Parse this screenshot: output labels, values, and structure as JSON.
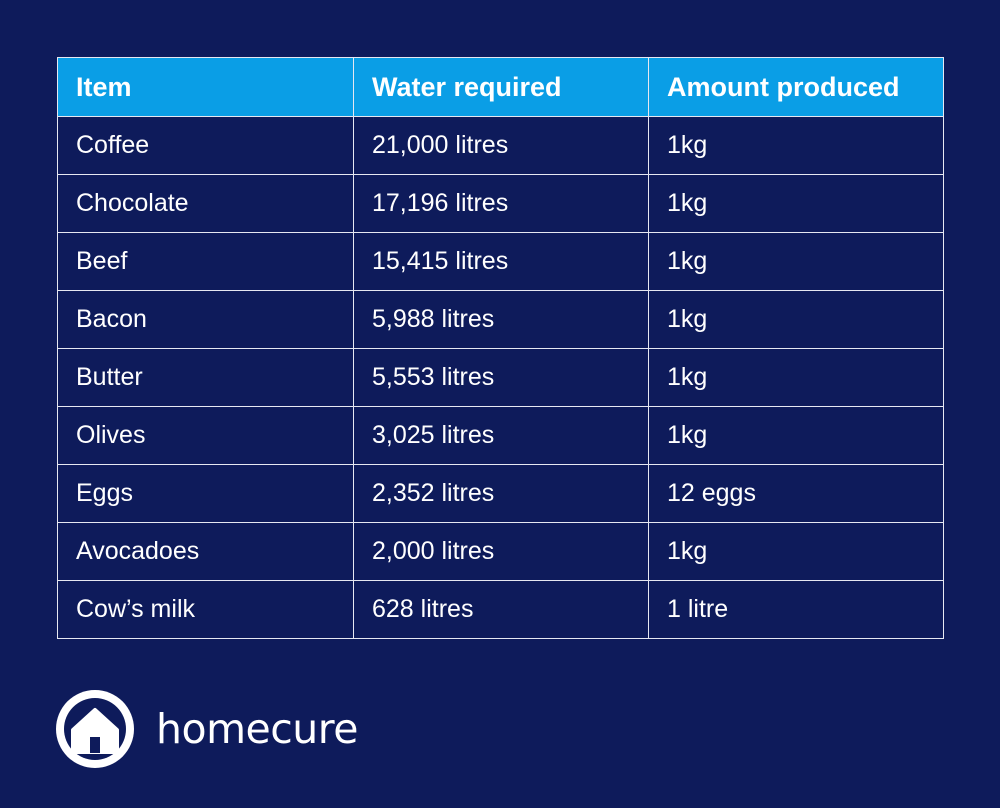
{
  "table": {
    "headers": [
      "Item",
      "Water required",
      "Amount produced"
    ],
    "rows": [
      [
        "Coffee",
        "21,000 litres",
        "1kg"
      ],
      [
        "Chocolate",
        "17,196 litres",
        "1kg"
      ],
      [
        "Beef",
        "15,415 litres",
        "1kg"
      ],
      [
        "Bacon",
        "5,988 litres",
        "1kg"
      ],
      [
        "Butter",
        "5,553 litres",
        "1kg"
      ],
      [
        "Olives",
        "3,025 litres",
        "1kg"
      ],
      [
        "Eggs",
        "2,352 litres",
        "12 eggs"
      ],
      [
        "Avocadoes",
        "2,000 litres",
        "1kg"
      ],
      [
        "Cow’s milk",
        "628 litres",
        "1 litre"
      ]
    ]
  },
  "brand": {
    "name": "homecure",
    "icon": "house-logo-icon"
  },
  "colors": {
    "background": "#0e1b5b",
    "header": "#0a9ee6",
    "border": "#e6e8f2",
    "text": "#ffffff"
  }
}
